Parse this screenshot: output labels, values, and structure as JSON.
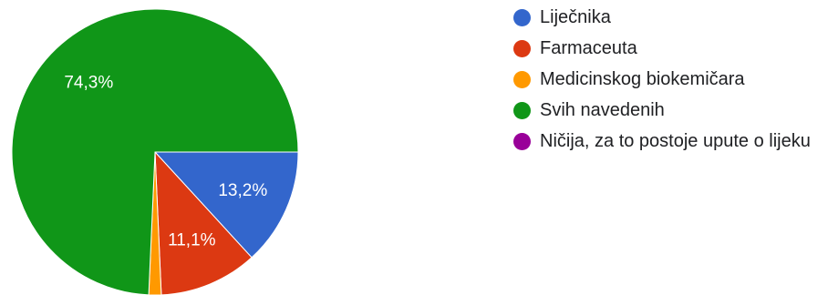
{
  "chart_data": {
    "type": "pie",
    "categories": [
      "Liječnika",
      "Farmaceuta",
      "Medicinskog biokemičara",
      "Svih navedenih",
      "Ničija, za to postoje upute o lijeku"
    ],
    "values": [
      13.2,
      11.1,
      1.4,
      74.3,
      0
    ],
    "data_labels": [
      "13,2%",
      "11,1%",
      "",
      "74,3%",
      ""
    ],
    "colors": [
      "#3366cc",
      "#dc3912",
      "#ff9900",
      "#109618",
      "#990099"
    ],
    "legend": "right"
  }
}
